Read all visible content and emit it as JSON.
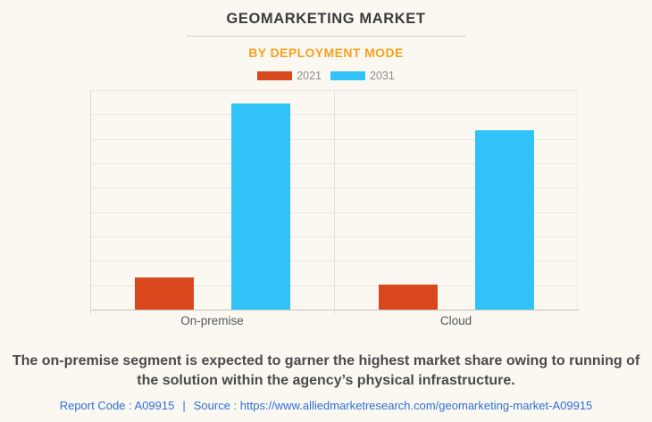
{
  "header": {
    "title": "GEOMARKETING MARKET",
    "subtitle": "BY DEPLOYMENT MODE"
  },
  "legend": [
    {
      "label": "2021",
      "color": "#d9481c"
    },
    {
      "label": "2031",
      "color": "#31c3f7"
    }
  ],
  "chart_data": {
    "type": "bar",
    "title": "GEOMARKETING MARKET",
    "subtitle": "BY DEPLOYMENT MODE",
    "categories": [
      "On-premise",
      "Cloud"
    ],
    "series": [
      {
        "name": "2021",
        "color": "#d9481c",
        "values": [
          14.6,
          11.4
        ]
      },
      {
        "name": "2031",
        "color": "#31c3f7",
        "values": [
          93.9,
          81.7
        ]
      }
    ],
    "xlabel": "",
    "ylabel": "",
    "ylim": [
      0,
      100
    ],
    "y_tick_labels_visible": false,
    "grid": true,
    "gridline_rows": 9,
    "legend_position": "top",
    "background_color": "#faf8f1"
  },
  "caption": {
    "line1": "The on-premise segment is expected to garner the highest market share owing to running of",
    "line2": "the solution within the agency’s physical infrastructure."
  },
  "footer": {
    "report_code": "Report Code : A09915",
    "separator": "|",
    "source": "Source : https://www.alliedmarketresearch.com/geomarketing-market-A09915"
  }
}
